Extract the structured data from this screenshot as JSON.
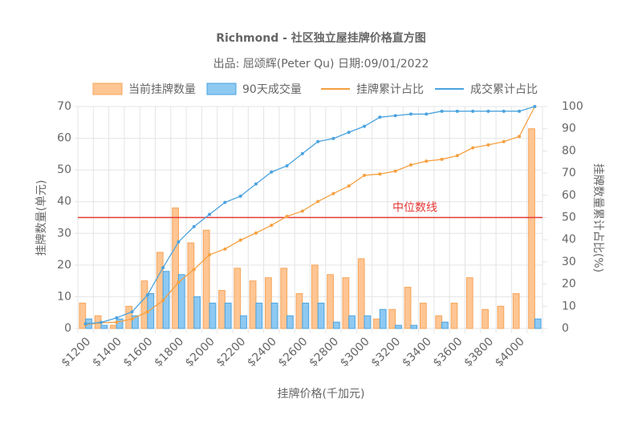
{
  "chart_data": {
    "type": "bar",
    "title": "Richmond - 社区独立屋挂牌价格直方图",
    "subtitle": "出品: 屈颂辉(Peter Qu) 日期:09/01/2022",
    "x_label": "挂牌价格(千加元)",
    "y_label": "挂牌数量(单元)",
    "y2_label": "挂牌数量累计占比(%)",
    "categories": [
      "$1200",
      null,
      "$1400",
      null,
      "$1600",
      null,
      "$1800",
      null,
      "$2000",
      null,
      "$2200",
      null,
      "$2400",
      null,
      "$2600",
      null,
      "$2800",
      null,
      "$3000",
      null,
      "$3200",
      null,
      "$3400",
      null,
      "$3600",
      null,
      "$3800",
      null,
      "$4000",
      null
    ],
    "series": [
      {
        "name": "当前挂牌数量",
        "type": "bar",
        "color": "#ffc593",
        "border": "#f5a55a",
        "values": [
          8,
          4,
          1,
          7,
          15,
          24,
          38,
          27,
          31,
          12,
          19,
          15,
          16,
          19,
          11,
          20,
          17,
          16,
          22,
          3,
          6,
          13,
          8,
          4,
          8,
          16,
          6,
          7,
          11,
          63
        ]
      },
      {
        "name": "90天成交量",
        "type": "bar",
        "color": "#8ec9f2",
        "border": "#4aa3df",
        "values": [
          3,
          1,
          3,
          4,
          11,
          18,
          17,
          10,
          8,
          8,
          4,
          8,
          8,
          4,
          8,
          8,
          2,
          4,
          4,
          6,
          1,
          1,
          0,
          2,
          0,
          0,
          0,
          0,
          0,
          3
        ]
      },
      {
        "name": "挂牌累计占比",
        "type": "line",
        "axis": "y2",
        "color": "#f5a040",
        "values": [
          1.7,
          2.6,
          2.8,
          4.3,
          7.5,
          12.6,
          20.8,
          26.6,
          33.2,
          35.8,
          39.8,
          43.0,
          46.5,
          50.5,
          52.9,
          57.2,
          60.8,
          64.2,
          69.0,
          69.6,
          70.9,
          73.7,
          75.4,
          76.2,
          77.9,
          81.4,
          82.7,
          84.2,
          86.5,
          100
        ]
      },
      {
        "name": "成交累计占比",
        "type": "line",
        "axis": "y2",
        "color": "#4aa3df",
        "values": [
          2.1,
          2.7,
          4.8,
          7.5,
          15.1,
          27.4,
          39.0,
          45.9,
          51.4,
          56.8,
          59.6,
          65.1,
          70.5,
          73.3,
          78.8,
          84.2,
          85.6,
          88.4,
          91.1,
          95.2,
          95.9,
          96.6,
          96.6,
          97.9,
          97.9,
          97.9,
          97.9,
          97.9,
          97.9,
          100
        ]
      }
    ],
    "median_line": {
      "label": "中位数线",
      "value": 35,
      "color": "#e53935"
    },
    "ylim": [
      0,
      70
    ],
    "yticks": [
      0,
      10,
      20,
      30,
      40,
      50,
      60,
      70
    ],
    "y2lim": [
      0,
      100
    ],
    "y2ticks": [
      0,
      10,
      20,
      30,
      40,
      50,
      60,
      70,
      80,
      90,
      100
    ],
    "grid": true,
    "legend": "top"
  }
}
